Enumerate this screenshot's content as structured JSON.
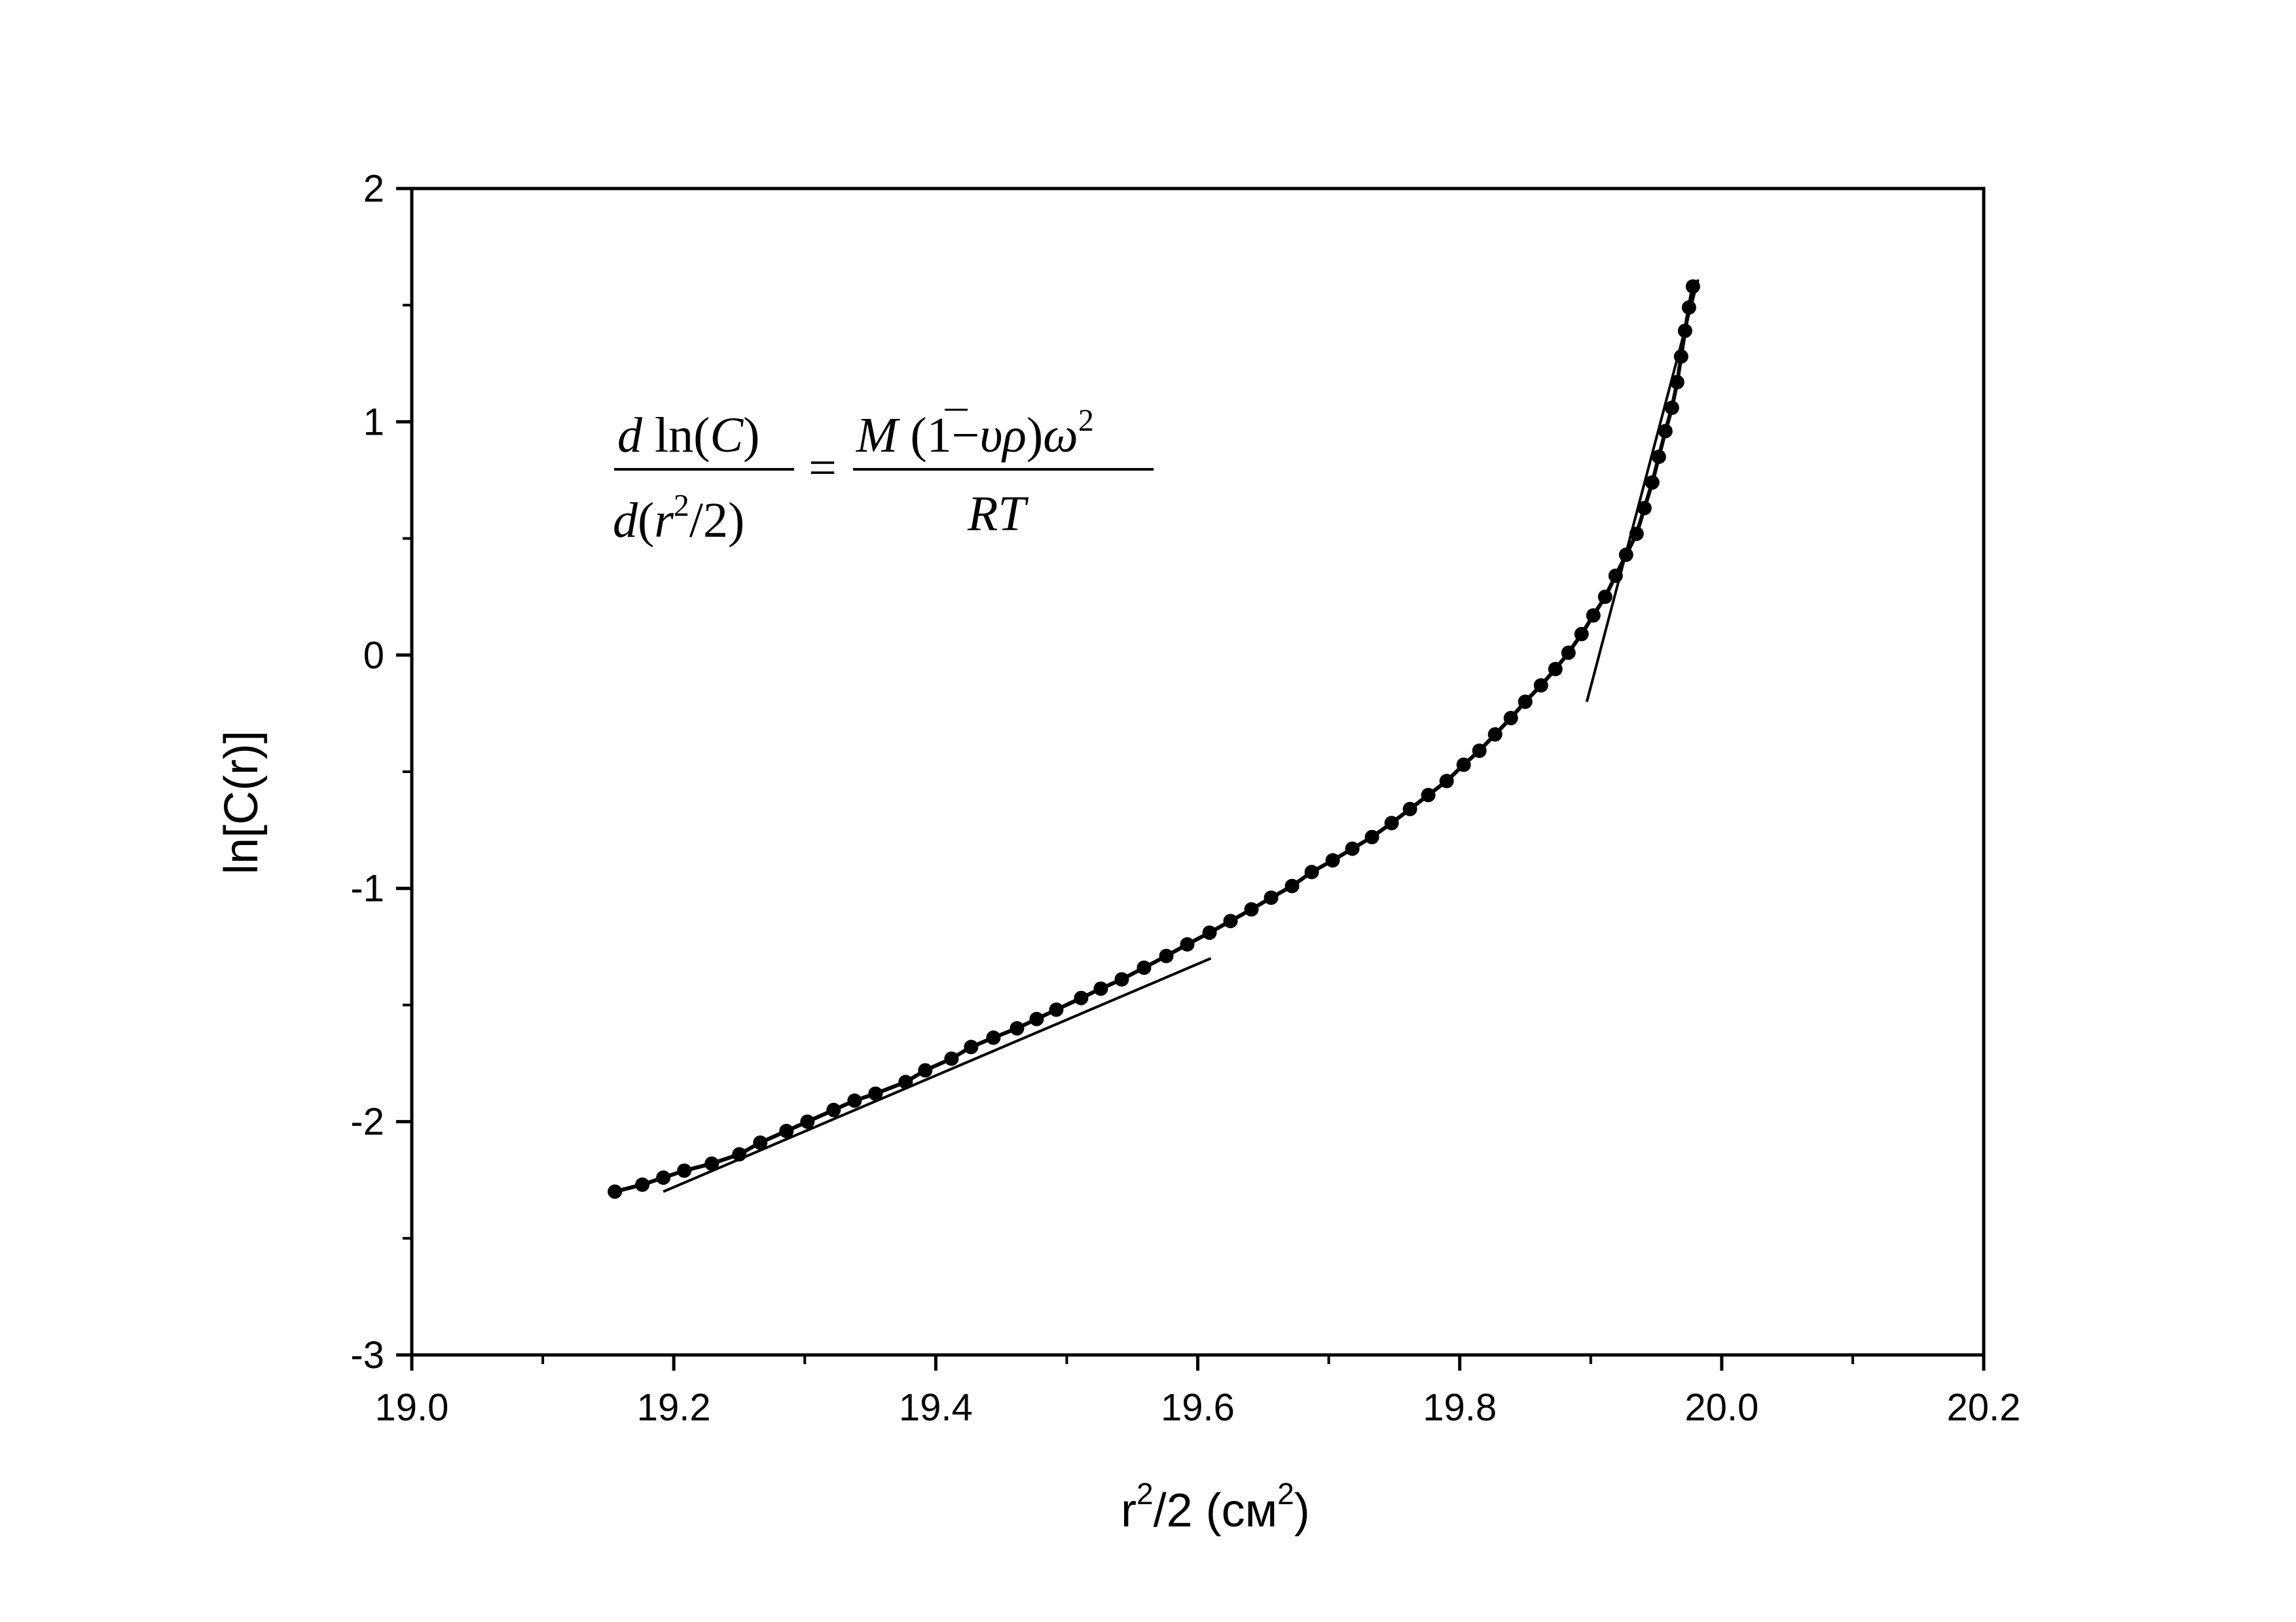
{
  "chart_data": {
    "type": "scatter",
    "xlim": [
      19.0,
      20.2
    ],
    "ylim": [
      -3,
      2
    ],
    "x_ticks": [
      19.0,
      19.2,
      19.4,
      19.6,
      19.8,
      20.0,
      20.2
    ],
    "x_tick_labels": [
      "19.0",
      "19.2",
      "19.4",
      "19.6",
      "19.8",
      "20.0",
      "20.2"
    ],
    "y_ticks": [
      -3,
      -2,
      -1,
      0,
      1,
      2
    ],
    "y_tick_labels": [
      "-3",
      "-2",
      "-1",
      "0",
      "1",
      "2"
    ],
    "xlabel": {
      "base": "r",
      "sup": "2",
      "rest": "/2 (см",
      "sup2": "2",
      "close": ")"
    },
    "ylabel": "ln[C(r)]",
    "grid": false,
    "legend": "none",
    "marker_color": "#000000",
    "series": [
      {
        "marker": "circle",
        "points": [
          [
            19.155,
            -2.3
          ],
          [
            19.176,
            -2.27
          ],
          [
            19.192,
            -2.24
          ],
          [
            19.208,
            -2.21
          ],
          [
            19.229,
            -2.18
          ],
          [
            19.25,
            -2.14
          ],
          [
            19.266,
            -2.09
          ],
          [
            19.286,
            -2.04
          ],
          [
            19.302,
            -2.0
          ],
          [
            19.322,
            -1.95
          ],
          [
            19.338,
            -1.91
          ],
          [
            19.354,
            -1.88
          ],
          [
            19.377,
            -1.83
          ],
          [
            19.392,
            -1.78
          ],
          [
            19.412,
            -1.73
          ],
          [
            19.427,
            -1.68
          ],
          [
            19.444,
            -1.64
          ],
          [
            19.462,
            -1.6
          ],
          [
            19.477,
            -1.56
          ],
          [
            19.492,
            -1.52
          ],
          [
            19.511,
            -1.47
          ],
          [
            19.526,
            -1.43
          ],
          [
            19.542,
            -1.39
          ],
          [
            19.559,
            -1.34
          ],
          [
            19.576,
            -1.29
          ],
          [
            19.592,
            -1.24
          ],
          [
            19.609,
            -1.19
          ],
          [
            19.625,
            -1.14
          ],
          [
            19.641,
            -1.09
          ],
          [
            19.656,
            -1.04
          ],
          [
            19.672,
            -0.99
          ],
          [
            19.687,
            -0.93
          ],
          [
            19.703,
            -0.88
          ],
          [
            19.718,
            -0.83
          ],
          [
            19.733,
            -0.78
          ],
          [
            19.748,
            -0.72
          ],
          [
            19.762,
            -0.66
          ],
          [
            19.776,
            -0.6
          ],
          [
            19.79,
            -0.54
          ],
          [
            19.803,
            -0.47
          ],
          [
            19.815,
            -0.41
          ],
          [
            19.827,
            -0.34
          ],
          [
            19.839,
            -0.27
          ],
          [
            19.85,
            -0.2
          ],
          [
            19.862,
            -0.13
          ],
          [
            19.873,
            -0.06
          ],
          [
            19.883,
            0.01
          ],
          [
            19.893,
            0.09
          ],
          [
            19.902,
            0.17
          ],
          [
            19.911,
            0.25
          ],
          [
            19.919,
            0.34
          ],
          [
            19.927,
            0.43
          ],
          [
            19.935,
            0.52
          ],
          [
            19.941,
            0.63
          ],
          [
            19.947,
            0.74
          ],
          [
            19.952,
            0.85
          ],
          [
            19.957,
            0.96
          ],
          [
            19.962,
            1.06
          ],
          [
            19.966,
            1.17
          ],
          [
            19.969,
            1.28
          ],
          [
            19.972,
            1.39
          ],
          [
            19.975,
            1.49
          ],
          [
            19.978,
            1.58
          ]
        ]
      }
    ],
    "tangent_lines": [
      {
        "from": [
          19.192,
          -2.3
        ],
        "to": [
          19.61,
          -1.3
        ]
      },
      {
        "from": [
          19.897,
          -0.2
        ],
        "to": [
          19.982,
          1.61
        ]
      }
    ]
  }
}
